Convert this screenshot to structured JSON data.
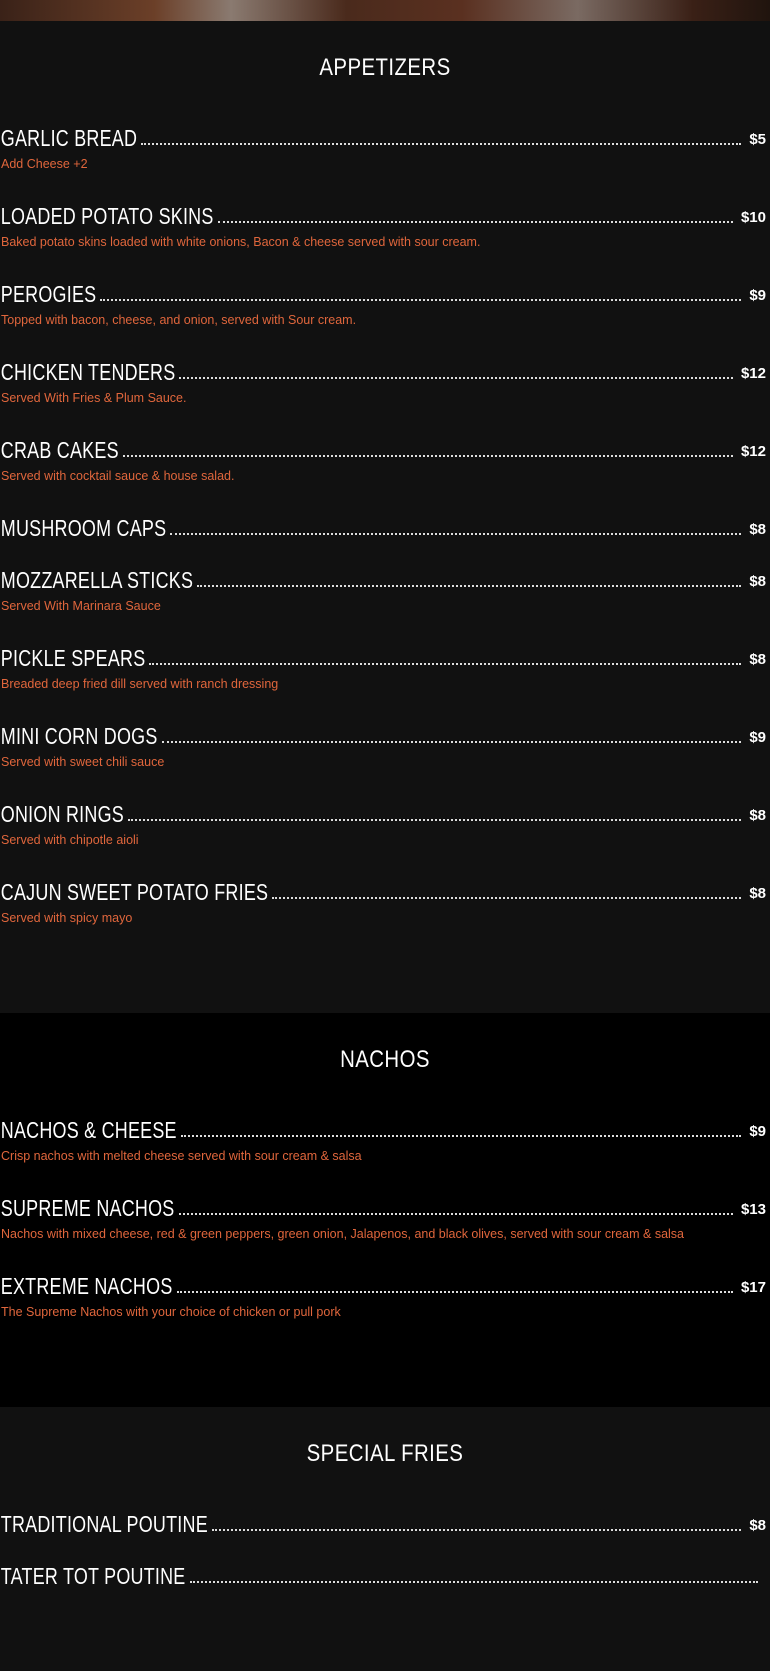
{
  "sections": [
    {
      "title": "APPETIZERS",
      "items": [
        {
          "name": "GARLIC BREAD",
          "price": "$5",
          "desc": "Add Cheese +2"
        },
        {
          "name": "LOADED POTATO SKINS",
          "price": "$10",
          "desc": "Baked potato skins loaded with white onions, Bacon & cheese served with sour cream."
        },
        {
          "name": "PEROGIES",
          "price": "$9",
          "desc": "Topped with bacon, cheese, and onion, served with Sour cream."
        },
        {
          "name": "CHICKEN TENDERS",
          "price": "$12",
          "desc": "Served With Fries & Plum Sauce."
        },
        {
          "name": "CRAB CAKES",
          "price": "$12",
          "desc": "Served with cocktail sauce & house salad."
        },
        {
          "name": "MUSHROOM CAPS",
          "price": "$8",
          "desc": ""
        },
        {
          "name": "MOZZARELLA STICKS",
          "price": "$8",
          "desc": "Served With Marinara Sauce"
        },
        {
          "name": "PICKLE SPEARS",
          "price": "$8",
          "desc": "Breaded deep fried dill served with ranch dressing"
        },
        {
          "name": "MINI CORN DOGS",
          "price": "$9",
          "desc": "Served with sweet chili sauce"
        },
        {
          "name": "ONION RINGS",
          "price": "$8",
          "desc": "Served with chipotle aioli"
        },
        {
          "name": "CAJUN SWEET POTATO FRIES",
          "price": "$8",
          "desc": "Served with spicy mayo"
        }
      ]
    },
    {
      "title": "NACHOS",
      "items": [
        {
          "name": "NACHOS & CHEESE",
          "price": "$9",
          "desc": "Crisp nachos with melted cheese served with sour cream & salsa"
        },
        {
          "name": "SUPREME NACHOS",
          "price": "$13",
          "desc": "Nachos with mixed cheese, red & green peppers, green onion, Jalapenos, and black olives, served with sour cream & salsa"
        },
        {
          "name": "EXTREME NACHOS",
          "price": "$17",
          "desc": "The Supreme Nachos with your choice of chicken or pull pork"
        }
      ]
    },
    {
      "title": "SPECIAL FRIES",
      "items": [
        {
          "name": "TRADITIONAL POUTINE",
          "price": "$8",
          "desc": ""
        },
        {
          "name": "TATER TOT POUTINE",
          "price": "",
          "desc": ""
        }
      ]
    }
  ],
  "colors": {
    "accent": "#e0663c",
    "bg_dark": "#111111",
    "bg_black": "#000000"
  }
}
